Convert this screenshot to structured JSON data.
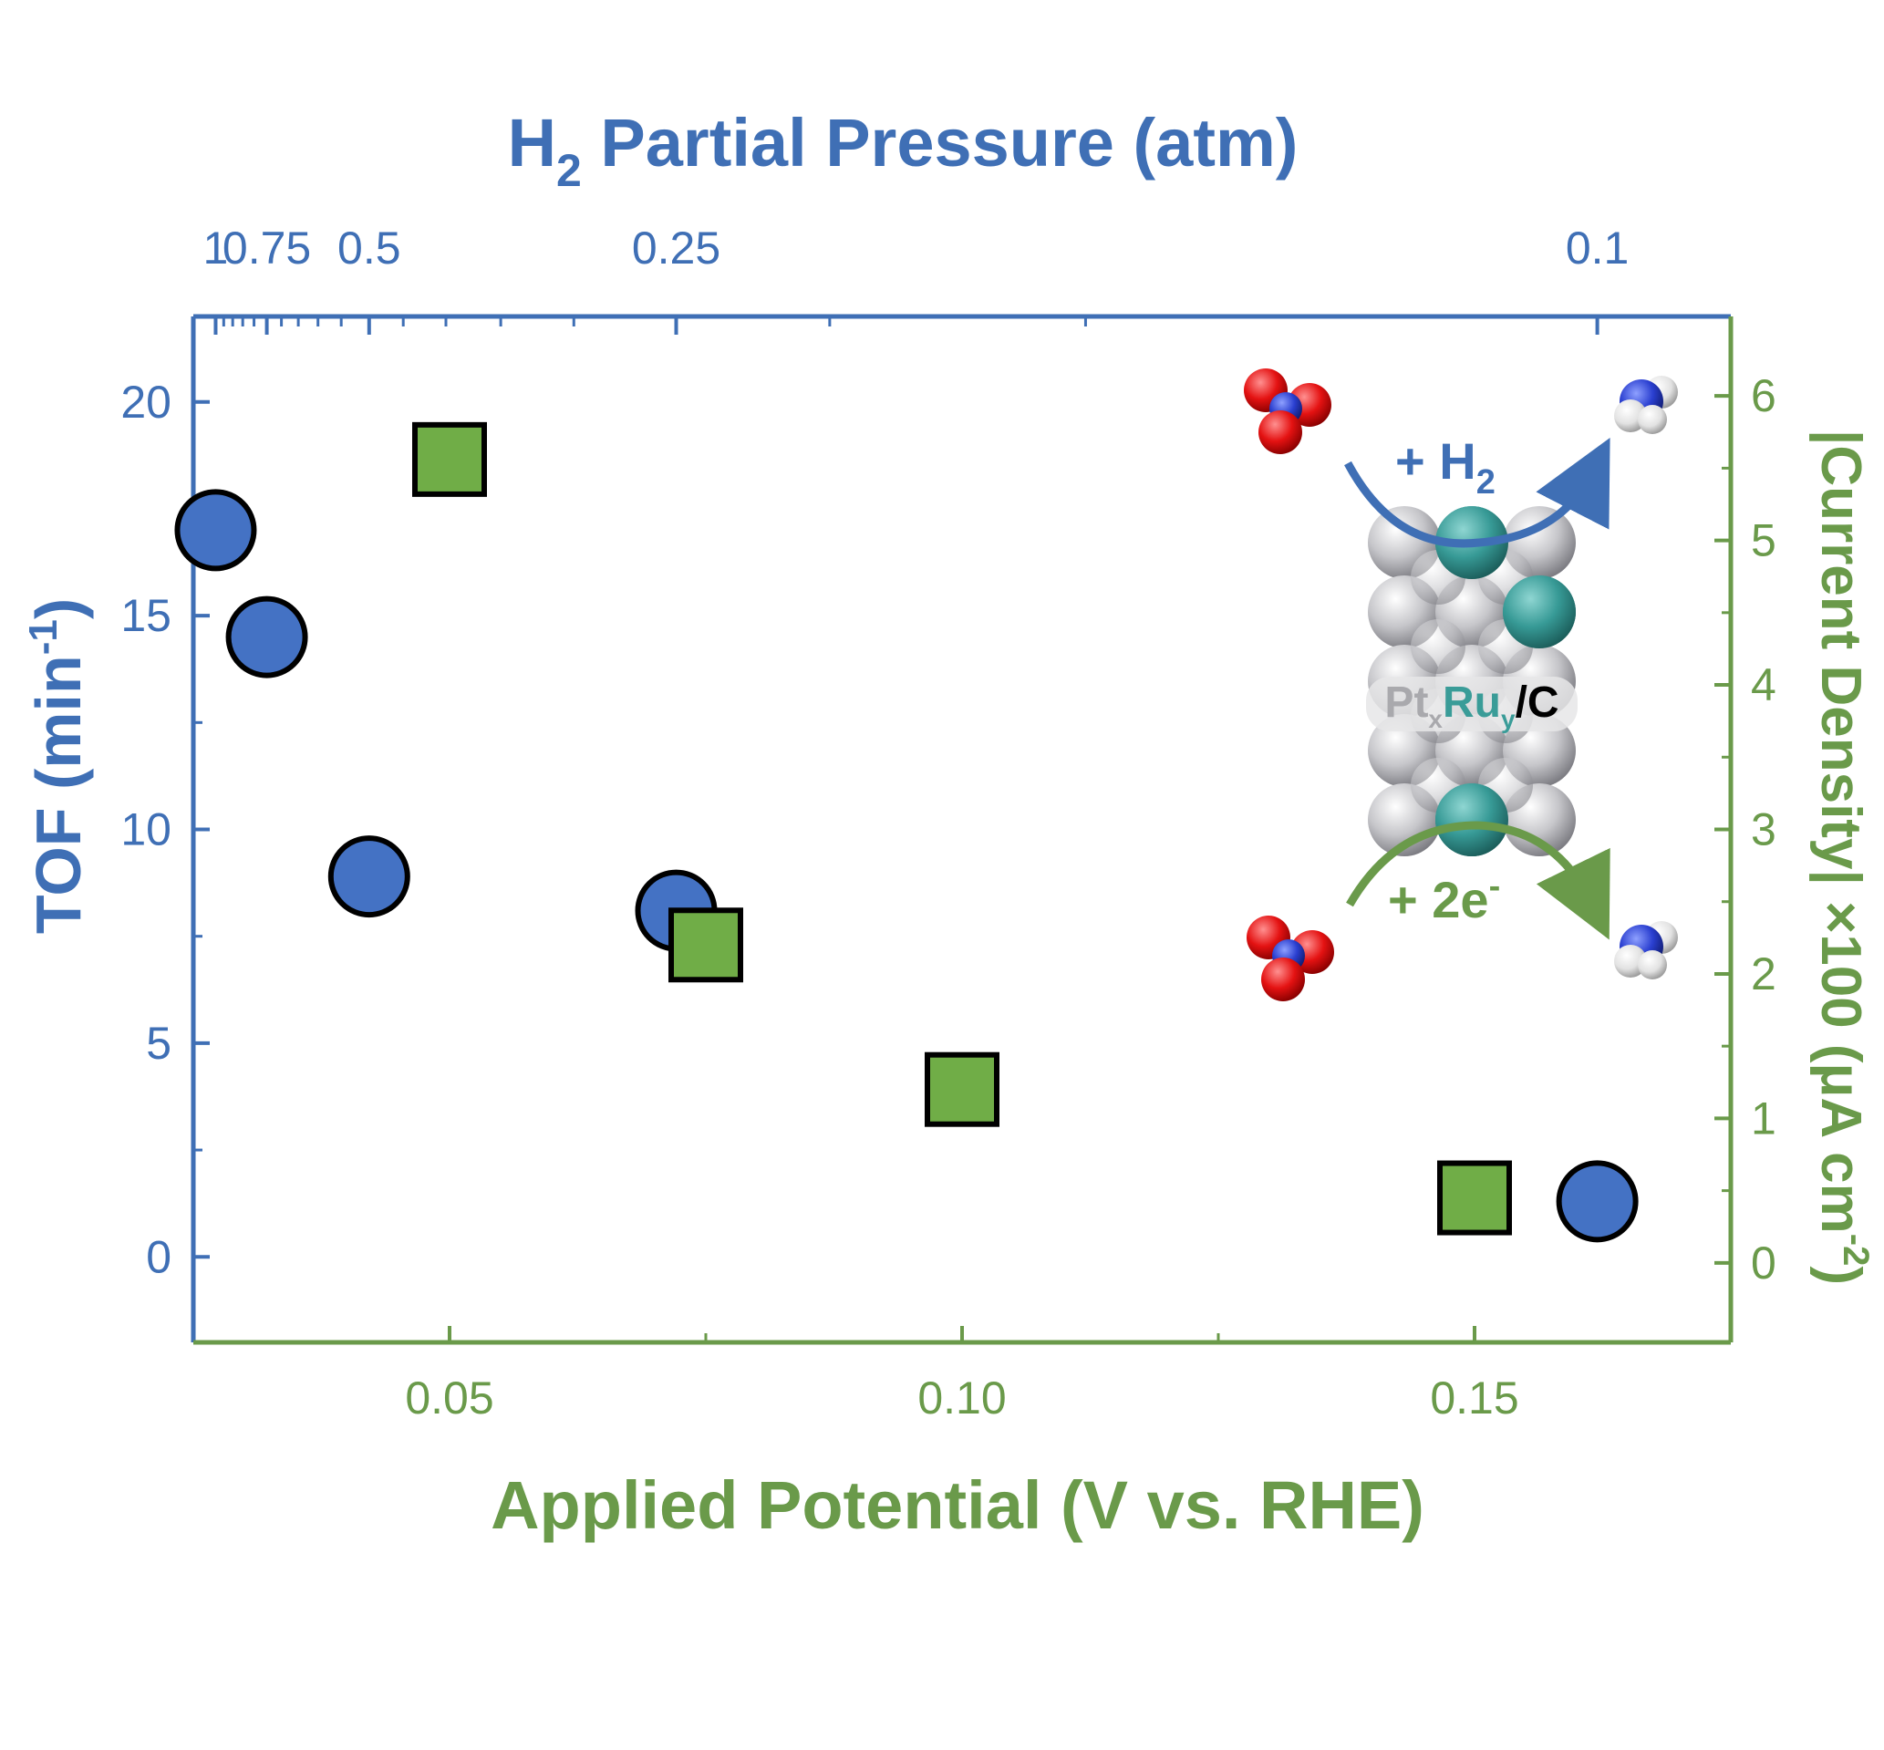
{
  "colors": {
    "blue": "#3f6fb5",
    "green": "#6a9a4a",
    "circle_fill": "#4472c4",
    "square_fill": "#70ad47",
    "marker_stroke": "#000000",
    "ru_atom": "#3a9c98",
    "pt_atom": "#c8c8cc",
    "oxygen": "#e01010",
    "nitrogen": "#2a3fc8",
    "hydrogen": "#e8e8e8"
  },
  "chart_data": {
    "type": "scatter",
    "axes": {
      "bottom": {
        "label": "Applied Potential (V vs. RHE)",
        "range": [
          0.025,
          0.175
        ],
        "ticks": [
          0.05,
          0.1,
          0.15
        ],
        "tick_labels": [
          "0.05",
          "0.10",
          "0.15"
        ],
        "minor": [
          0.075,
          0.125
        ]
      },
      "left": {
        "label_main": "TOF (min",
        "label_sup": "-1",
        "label_end": ")",
        "range": [
          -2,
          22
        ],
        "ticks": [
          0,
          5,
          10,
          15,
          20
        ],
        "tick_labels": [
          "0",
          "5",
          "10",
          "15",
          "20"
        ]
      },
      "top": {
        "label_main": "H",
        "label_sub": "2",
        "label_end": " Partial Pressure (atm)",
        "scale": "reciprocal",
        "range": [
          1.17,
          0.092
        ],
        "ticks": [
          1,
          0.75,
          0.5,
          0.25,
          0.1
        ],
        "tick_labels": [
          "1",
          "0.75",
          "0.5",
          "0.25",
          "0.1"
        ]
      },
      "right": {
        "label_main": "|Current Density| ×100 (μA cm",
        "label_sup": "-2",
        "label_end": ")",
        "range": [
          -0.55,
          6.55
        ],
        "ticks": [
          0,
          1,
          2,
          3,
          4,
          5,
          6
        ],
        "tick_labels": [
          "0",
          "1",
          "2",
          "3",
          "4",
          "5",
          "6"
        ]
      }
    },
    "series": [
      {
        "axes": [
          "top",
          "left"
        ],
        "marker": "circle",
        "points": [
          {
            "x": 1,
            "y": 17.0
          },
          {
            "x": 0.75,
            "y": 14.5
          },
          {
            "x": 0.5,
            "y": 8.9
          },
          {
            "x": 0.25,
            "y": 8.1
          },
          {
            "x": 0.1,
            "y": 1.3
          }
        ]
      },
      {
        "axes": [
          "bottom",
          "right"
        ],
        "marker": "square",
        "points": [
          {
            "x": 0.05,
            "y": 5.56
          },
          {
            "x": 0.075,
            "y": 2.2
          },
          {
            "x": 0.1,
            "y": 1.2
          },
          {
            "x": 0.15,
            "y": 0.45
          }
        ]
      }
    ],
    "grid": false,
    "inset": {
      "catalyst_label_1": "Pt",
      "catalyst_label_1_sub": "x",
      "catalyst_label_2": "Ru",
      "catalyst_label_2_sub": "y",
      "catalyst_label_3": "/C",
      "top_arrow_main": "+ H",
      "top_arrow_sub": "2",
      "bottom_arrow_main": "+ 2e",
      "bottom_arrow_sup": "-"
    }
  }
}
